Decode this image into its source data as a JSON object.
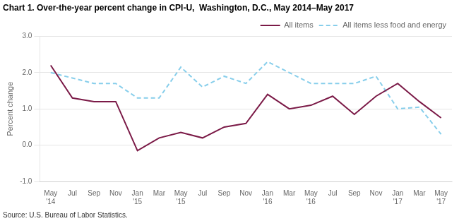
{
  "chart_data": {
    "type": "line",
    "title": "Chart 1. Over-the-year percent change in CPI-U,  Washington, D.C., May 2014–May 2017",
    "ylabel": "Percent change",
    "annotations": [
      "Source: U.S. Bureau of Labor Statistics."
    ],
    "categories": [
      "May\n'14",
      "Jul",
      "Sep",
      "Nov",
      "Jan\n'15",
      "Mar",
      "May\n'15",
      "Jul",
      "Sep",
      "Nov",
      "Jan\n'16",
      "Mar",
      "May\n'16",
      "Jul",
      "Sep",
      "Nov",
      "Jan\n'17",
      "Mar",
      "May\n'17"
    ],
    "series": [
      {
        "name": "All items",
        "color": "#7b1a47",
        "line_style": "solid",
        "values": [
          2.2,
          1.3,
          1.2,
          1.2,
          -0.15,
          0.2,
          0.35,
          0.2,
          0.5,
          0.6,
          1.4,
          1.0,
          1.1,
          1.35,
          0.85,
          1.35,
          1.7,
          1.2,
          0.75
        ]
      },
      {
        "name": "All items less food and energy",
        "color": "#87ceeb",
        "line_style": "dashed",
        "values": [
          2.0,
          1.85,
          1.7,
          1.7,
          1.3,
          1.3,
          2.15,
          1.6,
          1.9,
          1.7,
          2.3,
          2.0,
          1.7,
          1.7,
          1.7,
          1.9,
          1.0,
          1.05,
          0.3
        ]
      }
    ],
    "ylim": [
      -1.0,
      3.0
    ],
    "yticks": [
      {
        "value": -1.0,
        "label": "-1.0"
      },
      {
        "value": 0.0,
        "label": "0.0"
      },
      {
        "value": 1.0,
        "label": "1.0"
      },
      {
        "value": 2.0,
        "label": "2.0"
      },
      {
        "value": 3.0,
        "label": "3.0"
      }
    ],
    "grid": "y",
    "legend": "upper right"
  }
}
